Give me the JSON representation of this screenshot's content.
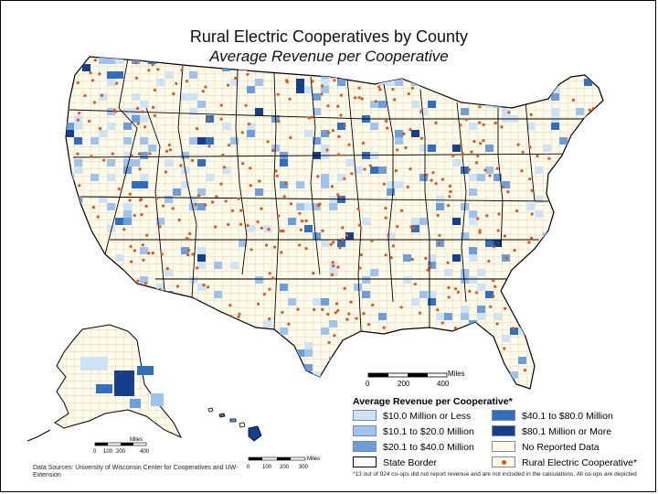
{
  "title": "Rural Electric Cooperatives by County",
  "subtitle": "Average Revenue per Cooperative",
  "legend": {
    "title": "Average Revenue per Cooperative*",
    "items": [
      {
        "label": "$10.0 Million or Less",
        "color": "#cfe3f7"
      },
      {
        "label": "$10.1 to $20.0 Million",
        "color": "#9dc3ee"
      },
      {
        "label": "$20.1 to $40.0 Million",
        "color": "#6b9fdb"
      },
      {
        "label": "$40.1 to $80.0 Million",
        "color": "#2f6fc0"
      },
      {
        "label": "$80.1 Million or More",
        "color": "#133f8c"
      },
      {
        "label": "No Reported Data",
        "color": "#fffbe6"
      },
      {
        "label": "State Border",
        "color": "#000000"
      },
      {
        "label": "Rural Electric Cooperative*",
        "color": "#e2531b"
      }
    ]
  },
  "footnote": "*13 out of 924 co-ops did not report revenue and are not included in the calculations.  All co-ops are depicted",
  "sources": "Data Sources: University of Wisconsin Center for Cooperatives and UW-Extension",
  "scalebars": {
    "main": {
      "unit": "Miles",
      "ticks": [
        "0",
        "200",
        "400"
      ]
    },
    "alaska": {
      "unit": "Miles",
      "ticks": [
        "0",
        "100",
        "200",
        "400"
      ]
    },
    "hawaii": {
      "unit": "Miles",
      "ticks": [
        "0",
        "100",
        "200",
        "300"
      ]
    }
  }
}
